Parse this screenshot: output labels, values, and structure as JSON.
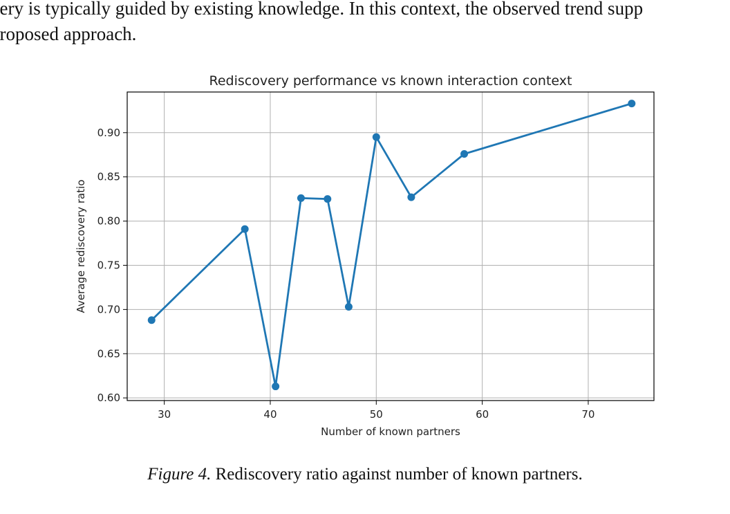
{
  "body_text": {
    "line1": "very is typically guided by existing knowledge. In this context, the observed trend supp",
    "line2": "proposed approach."
  },
  "caption": {
    "label": "Figure 4.",
    "text": "Rediscovery ratio against number of known partners."
  },
  "chart_data": {
    "type": "line",
    "title": "Rediscovery performance vs known interaction context",
    "xlabel": "Number of known partners",
    "ylabel": "Average rediscovery ratio",
    "xlim": [
      26.5,
      76.2
    ],
    "ylim": [
      0.597,
      0.946
    ],
    "xticks": [
      30,
      40,
      50,
      60,
      70
    ],
    "xtick_labels": [
      "30",
      "40",
      "50",
      "60",
      "70"
    ],
    "yticks": [
      0.6,
      0.65,
      0.7,
      0.75,
      0.8,
      0.85,
      0.9
    ],
    "ytick_labels": [
      "0.60",
      "0.65",
      "0.70",
      "0.75",
      "0.80",
      "0.85",
      "0.90"
    ],
    "grid": true,
    "series": [
      {
        "color": "#1f77b4",
        "marker": "circle",
        "x": [
          28.8,
          37.6,
          40.5,
          42.9,
          45.4,
          47.4,
          50.0,
          53.3,
          58.3,
          74.1
        ],
        "y": [
          0.688,
          0.791,
          0.613,
          0.826,
          0.825,
          0.703,
          0.895,
          0.827,
          0.876,
          0.933
        ]
      }
    ]
  }
}
